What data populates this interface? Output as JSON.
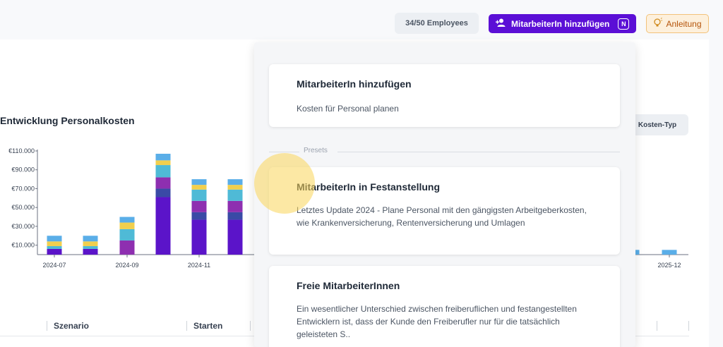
{
  "header": {
    "employee_count": "34/50 Employees",
    "add_button_label": "MitarbeiterIn hinzufügen",
    "add_button_shortcut": "N",
    "guide_label": "Anleitung"
  },
  "chart_section": {
    "title": "Entwicklung Personalkosten",
    "cost_type_button": "Kosten-Typ"
  },
  "chart_data": {
    "type": "bar",
    "y_ticks": [
      "€10.000",
      "€30.000",
      "€50.000",
      "€70.000",
      "€90.000",
      "€110.000"
    ],
    "x_tick_labels": [
      "2024-07",
      "2024-09",
      "2024-11",
      "2025-12"
    ],
    "ylim": [
      0,
      110000
    ],
    "series_colors": [
      "#5b14c9",
      "#3a4aa6",
      "#8e2fb0",
      "#4fbad6",
      "#f1cf4e",
      "#5aaee8"
    ],
    "stacks": [
      {
        "x": "2024-07",
        "segments": [
          6000,
          0,
          0,
          3000,
          5000,
          6000
        ]
      },
      {
        "x": "2024-08",
        "segments": [
          6000,
          0,
          0,
          3000,
          5000,
          6000
        ]
      },
      {
        "x": "2024-09",
        "segments": [
          0,
          0,
          15000,
          12000,
          7000,
          6000
        ]
      },
      {
        "x": "2024-10",
        "segments": [
          61000,
          9000,
          12000,
          13000,
          5000,
          7000
        ]
      },
      {
        "x": "2024-11",
        "segments": [
          37000,
          8000,
          12000,
          12000,
          5000,
          6000
        ]
      },
      {
        "x": "2024-12",
        "segments": [
          37000,
          8000,
          12000,
          12000,
          5000,
          6000
        ]
      },
      {
        "x": "2025-11",
        "segments": [
          0,
          0,
          0,
          0,
          0,
          5000
        ]
      },
      {
        "x": "2025-12",
        "segments": [
          0,
          0,
          0,
          0,
          0,
          5000
        ]
      }
    ]
  },
  "table": {
    "columns": [
      "Szenario",
      "Starten"
    ]
  },
  "dropdown": {
    "first_option": {
      "title": "MitarbeiterIn hinzufügen",
      "description": "Kosten für Personal planen"
    },
    "section_label": "Presets",
    "options": [
      {
        "title": "MitarbeiterIn in Festanstellung",
        "description": "Letztes Update 2024 - Plane Personal mit den gängigsten Arbeitgeberkosten, wie Krankenversicherung, Rentenversicherung und Umlagen"
      },
      {
        "title": "Freie MitarbeiterInnen",
        "description": "Ein wesentlicher Unterschied zwischen freiberuflichen und festangestellten Entwicklern ist, dass der Kunde den Freiberufler nur für die tatsächlich geleisteten S.."
      }
    ]
  },
  "icons": {
    "add_user": "add-user-icon",
    "lightbulb": "lightbulb-icon"
  }
}
